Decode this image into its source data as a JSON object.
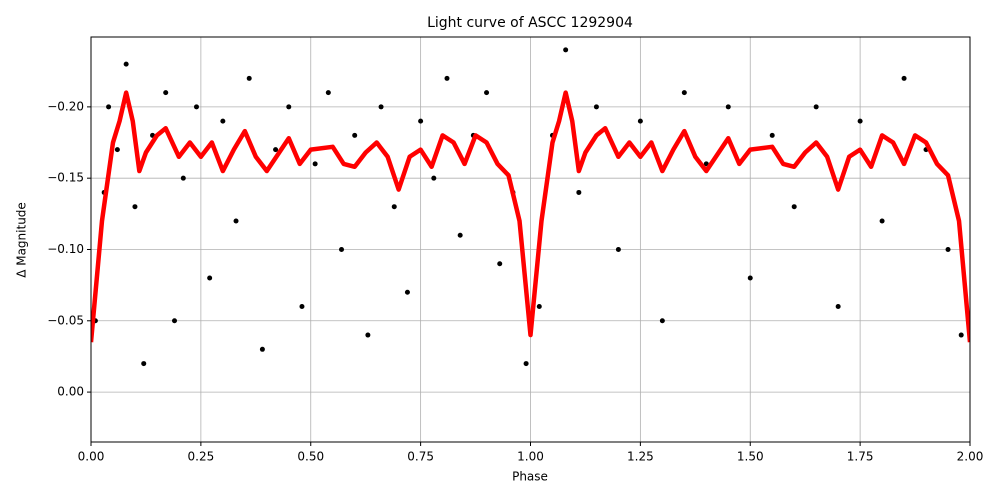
{
  "chart_data": {
    "type": "line",
    "title": "Light curve of ASCC 1292904",
    "x_label": "Phase",
    "y_label": "Δ Magnitude",
    "xlim": [
      0,
      2
    ],
    "ylim": [
      0.035,
      -0.249
    ],
    "grid": true,
    "xticks": [
      {
        "value": 0,
        "label": "0.00"
      },
      {
        "value": 0.25,
        "label": "0.25"
      },
      {
        "value": 0.5,
        "label": "0.50"
      },
      {
        "value": 0.75,
        "label": "0.75"
      },
      {
        "value": 1,
        "label": "1.00"
      },
      {
        "value": 1.25,
        "label": "1.25"
      },
      {
        "value": 1.5,
        "label": "1.50"
      },
      {
        "value": 1.75,
        "label": "1.75"
      },
      {
        "value": 2,
        "label": "2.00"
      }
    ],
    "yticks": [
      {
        "value": -0.2,
        "label": "−0.20"
      },
      {
        "value": -0.15,
        "label": "−0.15"
      },
      {
        "value": -0.1,
        "label": "−0.10"
      },
      {
        "value": -0.05,
        "label": "−0.05"
      },
      {
        "value": 0,
        "label": "0.00"
      }
    ],
    "series": [
      {
        "kind": "scatter",
        "color": "#000000",
        "x": [
          0.01,
          0.03,
          0.04,
          0.06,
          0.08,
          0.1,
          0.12,
          0.14,
          0.17,
          0.19,
          0.21,
          0.24,
          0.27,
          0.3,
          0.33,
          0.36,
          0.39,
          0.42,
          0.45,
          0.48,
          0.51,
          0.54,
          0.57,
          0.6,
          0.63,
          0.66,
          0.69,
          0.72,
          0.75,
          0.78,
          0.81,
          0.84,
          0.87,
          0.9,
          0.93,
          0.96,
          0.99,
          1.02,
          1.05,
          1.08,
          1.11,
          1.15,
          1.2,
          1.25,
          1.3,
          1.35,
          1.4,
          1.45,
          1.5,
          1.55,
          1.6,
          1.65,
          1.7,
          1.75,
          1.8,
          1.85,
          1.9,
          1.95,
          1.98
        ],
        "values": [
          -0.05,
          -0.14,
          -0.2,
          -0.17,
          -0.23,
          -0.13,
          -0.02,
          -0.18,
          -0.21,
          -0.05,
          -0.15,
          -0.2,
          -0.08,
          -0.19,
          -0.12,
          -0.22,
          -0.03,
          -0.17,
          -0.2,
          -0.06,
          -0.16,
          -0.21,
          -0.1,
          -0.18,
          -0.04,
          -0.2,
          -0.13,
          -0.07,
          -0.19,
          -0.15,
          -0.22,
          -0.11,
          -0.18,
          -0.21,
          -0.09,
          -0.14,
          -0.02,
          -0.06,
          -0.18,
          -0.24,
          -0.14,
          -0.2,
          -0.1,
          -0.19,
          -0.05,
          -0.21,
          -0.16,
          -0.2,
          -0.08,
          -0.18,
          -0.13,
          -0.2,
          -0.06,
          -0.19,
          -0.12,
          -0.22,
          -0.17,
          -0.1,
          -0.04
        ]
      },
      {
        "kind": "line",
        "color": "#ff0000",
        "x": [
          0,
          0.025,
          0.05,
          0.065,
          0.08,
          0.095,
          0.11,
          0.125,
          0.15,
          0.17,
          0.2,
          0.225,
          0.25,
          0.275,
          0.3,
          0.325,
          0.35,
          0.375,
          0.4,
          0.45,
          0.475,
          0.5,
          0.55,
          0.575,
          0.6,
          0.625,
          0.65,
          0.675,
          0.7,
          0.725,
          0.75,
          0.775,
          0.8,
          0.825,
          0.85,
          0.875,
          0.9,
          0.925,
          0.95,
          0.975,
          1.0,
          1.025,
          1.05,
          1.065,
          1.08,
          1.095,
          1.11,
          1.125,
          1.15,
          1.17,
          1.2,
          1.225,
          1.25,
          1.275,
          1.3,
          1.325,
          1.35,
          1.375,
          1.4,
          1.45,
          1.475,
          1.5,
          1.55,
          1.575,
          1.6,
          1.625,
          1.65,
          1.675,
          1.7,
          1.725,
          1.75,
          1.775,
          1.8,
          1.825,
          1.85,
          1.875,
          1.9,
          1.925,
          1.95,
          1.975,
          2.0
        ],
        "values": [
          -0.035,
          -0.12,
          -0.175,
          -0.19,
          -0.21,
          -0.19,
          -0.155,
          -0.168,
          -0.18,
          -0.185,
          -0.165,
          -0.175,
          -0.165,
          -0.175,
          -0.155,
          -0.17,
          -0.183,
          -0.165,
          -0.155,
          -0.178,
          -0.16,
          -0.17,
          -0.172,
          -0.16,
          -0.158,
          -0.168,
          -0.175,
          -0.165,
          -0.142,
          -0.165,
          -0.17,
          -0.158,
          -0.18,
          -0.175,
          -0.16,
          -0.18,
          -0.175,
          -0.16,
          -0.152,
          -0.12,
          -0.04,
          -0.12,
          -0.175,
          -0.19,
          -0.21,
          -0.19,
          -0.155,
          -0.168,
          -0.18,
          -0.185,
          -0.165,
          -0.175,
          -0.165,
          -0.175,
          -0.155,
          -0.17,
          -0.183,
          -0.165,
          -0.155,
          -0.178,
          -0.16,
          -0.17,
          -0.172,
          -0.16,
          -0.158,
          -0.168,
          -0.175,
          -0.165,
          -0.142,
          -0.165,
          -0.17,
          -0.158,
          -0.18,
          -0.175,
          -0.16,
          -0.18,
          -0.175,
          -0.16,
          -0.152,
          -0.12,
          -0.035
        ]
      }
    ]
  }
}
